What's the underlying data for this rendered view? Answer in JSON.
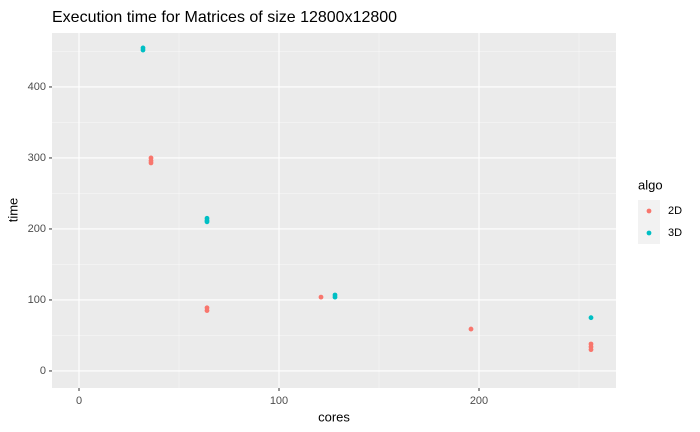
{
  "chart_data": {
    "type": "scatter",
    "title": "Execution time for Matrices of size 12800x12800",
    "x_label": "cores",
    "y_label": "time",
    "legend_title": "algo",
    "series": [
      {
        "name": "2D",
        "color": "#F8766D",
        "x": [
          36,
          36,
          36,
          64,
          64,
          121,
          196,
          256,
          256,
          256
        ],
        "values": [
          300,
          296,
          293,
          89,
          85,
          104,
          59,
          38,
          34,
          30
        ]
      },
      {
        "name": "3D",
        "color": "#00BFC4",
        "x": [
          32,
          32,
          64,
          64,
          64,
          128,
          128,
          256
        ],
        "values": [
          455,
          452,
          215,
          212,
          210,
          107,
          104,
          75
        ]
      }
    ],
    "xlim": [
      -13.5,
      268.5
    ],
    "ylim": [
      -24,
      476
    ],
    "xticks": [
      0,
      100,
      200
    ],
    "yticks": [
      0,
      100,
      200,
      300,
      400
    ],
    "grid": true,
    "legend_position": "right"
  }
}
